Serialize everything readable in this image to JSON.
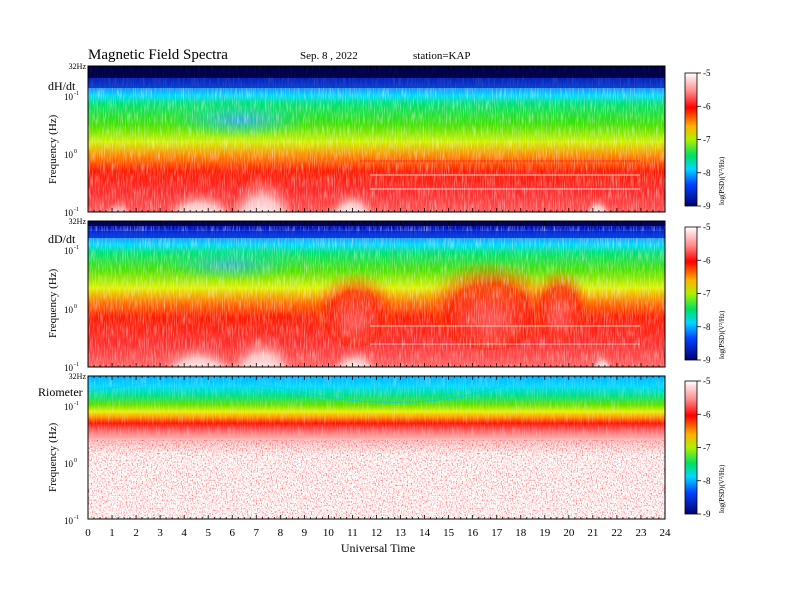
{
  "header": {
    "title": "Magnetic  Field  Spectra",
    "date": "Sep. 8  , 2022",
    "station": "station=KAP"
  },
  "chart_data": [
    {
      "type": "heatmap",
      "panel_label": "dH/dt",
      "ylabel": "Frequency  (Hz)",
      "top_freq_label": "32Hz",
      "ytick_labels": [
        "10",
        "10",
        "10"
      ],
      "ytick_exponents": [
        "-1",
        "0",
        "-1"
      ],
      "colorbar": {
        "label": "log(PSD)(V²/Hz)",
        "ticks": [
          "-5",
          "-6",
          "-7",
          "-8",
          "-9"
        ],
        "range": [
          -9,
          -5
        ]
      }
    },
    {
      "type": "heatmap",
      "panel_label": "dD/dt",
      "ylabel": "Frequency  (Hz)",
      "top_freq_label": "32Hz",
      "ytick_labels": [
        "10",
        "10",
        "10"
      ],
      "ytick_exponents": [
        "-1",
        "0",
        "-1"
      ],
      "colorbar": {
        "label": "log(PSD)(V²/Hz)",
        "ticks": [
          "-5",
          "-6",
          "-7",
          "-8",
          "-9"
        ],
        "range": [
          -9,
          -5
        ]
      }
    },
    {
      "type": "heatmap",
      "panel_label": "Riometer",
      "ylabel": "Frequency  (Hz)",
      "top_freq_label": "32Hz",
      "ytick_labels": [
        "10",
        "10",
        "10"
      ],
      "ytick_exponents": [
        "-1",
        "0",
        "-1"
      ],
      "colorbar": {
        "label": "log(PSD)(V²/Hz)",
        "ticks": [
          "-5",
          "-6",
          "-7",
          "-8",
          "-9"
        ],
        "range": [
          -9,
          -5
        ]
      }
    }
  ],
  "xaxis": {
    "label": "Universal Time",
    "ticks": [
      "0",
      "1",
      "2",
      "3",
      "4",
      "5",
      "6",
      "7",
      "8",
      "9",
      "10",
      "11",
      "12",
      "13",
      "14",
      "15",
      "16",
      "17",
      "18",
      "19",
      "20",
      "21",
      "22",
      "23",
      "24"
    ],
    "range": [
      0,
      24
    ]
  },
  "colors": {
    "colormap": [
      "#000060",
      "#0000c8",
      "#0060ff",
      "#00d8ff",
      "#00e080",
      "#30e000",
      "#c8f000",
      "#ffd000",
      "#ff3000",
      "#ff0000",
      "#ff8a8a",
      "#ffffff"
    ]
  }
}
